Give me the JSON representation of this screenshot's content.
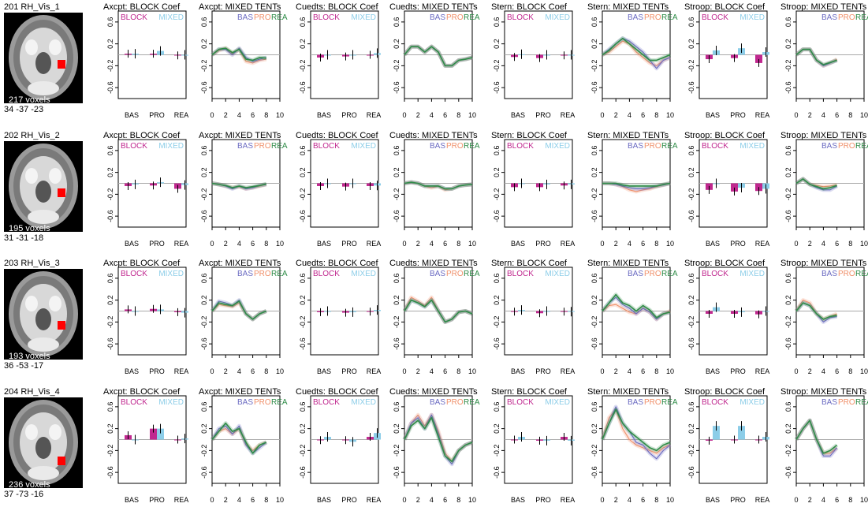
{
  "colors": {
    "block": "#c0288f",
    "mixed": "#8ccde8",
    "bas": "#6b6bc2",
    "pro": "#f0906a",
    "rea": "#2e8b47",
    "zero": "#aaaaaa",
    "brain_roi": "#ff0000"
  },
  "legend": {
    "block_label": "BLOCK",
    "mixed_label": "MIXED",
    "bas_label": "BAS",
    "pro_label": "PRO",
    "rea_label": "REA"
  },
  "axes": {
    "y_ticks": [
      "0.6",
      "0.2",
      "-0.2",
      "-0.6"
    ],
    "y_tick_values": [
      0.6,
      0.2,
      -0.2,
      -0.6
    ],
    "ylim": [
      -0.8,
      0.8
    ],
    "block_categories": [
      "BAS",
      "PRO",
      "REA"
    ],
    "tent_x_ticks": [
      "0",
      "2",
      "4",
      "6",
      "8",
      "10"
    ],
    "tent_xlim": [
      0,
      10
    ]
  },
  "panel_titles": [
    "Axcpt: BLOCK Coef",
    "Axcpt: MIXED TENTs",
    "Cuedts: BLOCK Coef",
    "Cuedts: MIXED TENTs",
    "Stern: BLOCK Coef",
    "Stern: MIXED TENTs",
    "Stroop: BLOCK Coef",
    "Stroop: MIXED TENTs"
  ],
  "rows": [
    {
      "roi": "201 RH_Vis_1",
      "voxels": "217 voxels",
      "coords": "34 -37 -23"
    },
    {
      "roi": "202 RH_Vis_2",
      "voxels": "195 voxels",
      "coords": "31 -31 -18"
    },
    {
      "roi": "203 RH_Vis_3",
      "voxels": "193 voxels",
      "coords": "36 -53 -17"
    },
    {
      "roi": "204 RH_Vis_4",
      "voxels": "236 voxels",
      "coords": "37 -73 -16"
    }
  ],
  "chart_data": [
    {
      "type": "bar",
      "roi": "201 RH_Vis_1",
      "task": "Axcpt",
      "block": [
        0.02,
        0.02,
        -0.01
      ],
      "mixed": [
        0.02,
        0.07,
        0.0
      ]
    },
    {
      "type": "line",
      "roi": "201 RH_Vis_1",
      "task": "Axcpt",
      "x": [
        0,
        1,
        2,
        3,
        4,
        5,
        6,
        7,
        8
      ],
      "BAS": [
        0,
        0.1,
        0.1,
        0.0,
        0.12,
        -0.05,
        -0.12,
        -0.08,
        -0.05
      ],
      "PRO": [
        0,
        0.08,
        0.12,
        0.02,
        0.1,
        -0.12,
        -0.15,
        -0.1,
        -0.08
      ],
      "REA": [
        0,
        0.1,
        0.12,
        0.04,
        0.1,
        -0.08,
        -0.1,
        -0.05,
        -0.06
      ]
    },
    {
      "type": "bar",
      "roi": "201 RH_Vis_1",
      "task": "Cuedts",
      "block": [
        -0.05,
        -0.03,
        0.0
      ],
      "mixed": [
        0.0,
        0.0,
        0.03
      ]
    },
    {
      "type": "line",
      "roi": "201 RH_Vis_1",
      "task": "Cuedts",
      "x": [
        0,
        1,
        2,
        3,
        4,
        5,
        6,
        7,
        8,
        9,
        10
      ],
      "BAS": [
        0,
        0.15,
        0.15,
        0.05,
        0.15,
        0.05,
        -0.2,
        -0.2,
        -0.1,
        -0.08,
        -0.05
      ],
      "PRO": [
        0,
        0.15,
        0.15,
        0.05,
        0.15,
        0.05,
        -0.2,
        -0.2,
        -0.1,
        -0.08,
        -0.05
      ],
      "REA": [
        0,
        0.15,
        0.15,
        0.05,
        0.15,
        0.05,
        -0.2,
        -0.2,
        -0.1,
        -0.08,
        -0.05
      ]
    },
    {
      "type": "bar",
      "roi": "201 RH_Vis_1",
      "task": "Stern",
      "block": [
        -0.04,
        -0.06,
        -0.01
      ],
      "mixed": [
        0.01,
        0.0,
        0.0
      ]
    },
    {
      "type": "line",
      "roi": "201 RH_Vis_1",
      "task": "Stern",
      "x": [
        0,
        1,
        2,
        3,
        4,
        5,
        6,
        7,
        8,
        9,
        10
      ],
      "BAS": [
        0,
        0.1,
        0.2,
        0.3,
        0.25,
        0.15,
        0.05,
        -0.1,
        -0.25,
        -0.1,
        -0.05
      ],
      "PRO": [
        0,
        0.05,
        0.15,
        0.25,
        0.2,
        0.05,
        -0.05,
        -0.15,
        -0.2,
        -0.1,
        -0.05
      ],
      "REA": [
        0,
        0.08,
        0.2,
        0.3,
        0.2,
        0.1,
        0.0,
        -0.1,
        -0.1,
        -0.05,
        0.0
      ]
    },
    {
      "type": "bar",
      "roi": "201 RH_Vis_1",
      "task": "Stroop",
      "block": [
        -0.08,
        -0.06,
        -0.15
      ],
      "mixed": [
        0.08,
        0.12,
        0.05
      ]
    },
    {
      "type": "line",
      "roi": "201 RH_Vis_1",
      "task": "Stroop",
      "x": [
        0,
        1,
        2,
        3,
        4,
        5,
        6
      ],
      "BAS": [
        0,
        0.1,
        0.1,
        -0.1,
        -0.2,
        -0.15,
        -0.1
      ],
      "PRO": [
        0,
        0.1,
        0.1,
        -0.1,
        -0.2,
        -0.15,
        -0.08
      ],
      "REA": [
        0,
        0.1,
        0.1,
        -0.1,
        -0.18,
        -0.14,
        -0.1
      ]
    },
    {
      "type": "bar",
      "roi": "202 RH_Vis_2",
      "task": "Axcpt",
      "block": [
        -0.05,
        -0.04,
        -0.1
      ],
      "mixed": [
        -0.02,
        0.02,
        -0.03
      ]
    },
    {
      "type": "line",
      "roi": "202 RH_Vis_2",
      "task": "Axcpt",
      "x": [
        0,
        1,
        2,
        3,
        4,
        5,
        6,
        7,
        8
      ],
      "BAS": [
        0,
        -0.02,
        -0.05,
        -0.1,
        -0.05,
        -0.1,
        -0.08,
        -0.04,
        -0.02
      ],
      "PRO": [
        0,
        -0.02,
        -0.05,
        -0.08,
        -0.06,
        -0.1,
        -0.08,
        -0.05,
        -0.02
      ],
      "REA": [
        0,
        -0.02,
        -0.04,
        -0.08,
        -0.05,
        -0.08,
        -0.06,
        -0.04,
        -0.01
      ]
    },
    {
      "type": "bar",
      "roi": "202 RH_Vis_2",
      "task": "Cuedts",
      "block": [
        -0.05,
        -0.06,
        -0.05
      ],
      "mixed": [
        0.0,
        0.0,
        -0.04
      ]
    },
    {
      "type": "line",
      "roi": "202 RH_Vis_2",
      "task": "Cuedts",
      "x": [
        0,
        1,
        2,
        3,
        4,
        5,
        6,
        7,
        8,
        9,
        10
      ],
      "BAS": [
        0,
        0.02,
        0.0,
        -0.05,
        -0.05,
        -0.05,
        -0.1,
        -0.1,
        -0.05,
        -0.03,
        -0.02
      ],
      "PRO": [
        0,
        0.02,
        0.0,
        -0.05,
        -0.08,
        -0.05,
        -0.12,
        -0.1,
        -0.05,
        -0.03,
        -0.02
      ],
      "REA": [
        0,
        0.02,
        0.0,
        -0.05,
        -0.05,
        -0.05,
        -0.1,
        -0.1,
        -0.05,
        -0.03,
        -0.02
      ]
    },
    {
      "type": "bar",
      "roi": "202 RH_Vis_2",
      "task": "Stern",
      "block": [
        -0.07,
        -0.07,
        -0.04
      ],
      "mixed": [
        0.0,
        -0.02,
        -0.02
      ]
    },
    {
      "type": "line",
      "roi": "202 RH_Vis_2",
      "task": "Stern",
      "x": [
        0,
        1,
        2,
        3,
        4,
        5,
        6,
        7,
        8,
        9,
        10
      ],
      "BAS": [
        0,
        0.0,
        -0.02,
        -0.05,
        -0.08,
        -0.1,
        -0.1,
        -0.08,
        -0.05,
        -0.03,
        0.0
      ],
      "PRO": [
        0,
        0.0,
        -0.02,
        -0.06,
        -0.12,
        -0.15,
        -0.12,
        -0.1,
        -0.06,
        -0.03,
        0.0
      ],
      "REA": [
        0,
        0.0,
        0.0,
        -0.03,
        -0.05,
        -0.05,
        -0.05,
        -0.05,
        -0.05,
        -0.02,
        0.0
      ]
    },
    {
      "type": "bar",
      "roi": "202 RH_Vis_2",
      "task": "Stroop",
      "block": [
        -0.12,
        -0.15,
        -0.14
      ],
      "mixed": [
        0.0,
        -0.08,
        -0.1
      ]
    },
    {
      "type": "line",
      "roi": "202 RH_Vis_2",
      "task": "Stroop",
      "x": [
        0,
        1,
        2,
        3,
        4,
        5,
        6
      ],
      "BAS": [
        0,
        0.08,
        -0.02,
        -0.08,
        -0.12,
        -0.12,
        -0.05
      ],
      "PRO": [
        0,
        0.08,
        -0.02,
        -0.04,
        -0.06,
        -0.05,
        -0.03
      ],
      "REA": [
        0,
        0.08,
        -0.02,
        -0.06,
        -0.1,
        -0.08,
        -0.04
      ]
    },
    {
      "type": "bar",
      "roi": "203 RH_Vis_3",
      "task": "Axcpt",
      "block": [
        0.03,
        0.04,
        -0.02
      ],
      "mixed": [
        0.0,
        0.03,
        -0.03
      ]
    },
    {
      "type": "line",
      "roi": "203 RH_Vis_3",
      "task": "Axcpt",
      "x": [
        0,
        1,
        2,
        3,
        4,
        5,
        6,
        7,
        8
      ],
      "BAS": [
        0,
        0.18,
        0.15,
        0.1,
        0.2,
        -0.05,
        -0.15,
        -0.05,
        0.0
      ],
      "PRO": [
        0,
        0.12,
        0.1,
        0.08,
        0.15,
        -0.05,
        -0.15,
        -0.05,
        0.0
      ],
      "REA": [
        0,
        0.15,
        0.12,
        0.1,
        0.18,
        -0.05,
        -0.15,
        -0.05,
        0.0
      ]
    },
    {
      "type": "bar",
      "roi": "203 RH_Vis_3",
      "task": "Cuedts",
      "block": [
        -0.02,
        -0.03,
        -0.01
      ],
      "mixed": [
        0.0,
        -0.02,
        0.02
      ]
    },
    {
      "type": "line",
      "roi": "203 RH_Vis_3",
      "task": "Cuedts",
      "x": [
        0,
        1,
        2,
        3,
        4,
        5,
        6,
        7,
        8,
        9,
        10
      ],
      "BAS": [
        0,
        0.2,
        0.15,
        0.08,
        0.2,
        0.0,
        -0.2,
        -0.15,
        -0.02,
        0.0,
        -0.05
      ],
      "PRO": [
        0,
        0.25,
        0.18,
        0.1,
        0.25,
        0.0,
        -0.2,
        -0.15,
        -0.02,
        0.0,
        -0.05
      ],
      "REA": [
        0,
        0.2,
        0.15,
        0.08,
        0.2,
        0.0,
        -0.2,
        -0.15,
        -0.02,
        0.0,
        -0.05
      ]
    },
    {
      "type": "bar",
      "roi": "203 RH_Vis_3",
      "task": "Stern",
      "block": [
        -0.01,
        -0.04,
        -0.01
      ],
      "mixed": [
        0.02,
        0.0,
        -0.01
      ]
    },
    {
      "type": "line",
      "roi": "203 RH_Vis_3",
      "task": "Stern",
      "x": [
        0,
        1,
        2,
        3,
        4,
        5,
        6,
        7,
        8,
        9,
        10
      ],
      "BAS": [
        0,
        0.15,
        0.25,
        0.12,
        0.05,
        -0.05,
        0.05,
        -0.02,
        -0.15,
        -0.05,
        -0.02
      ],
      "PRO": [
        0,
        0.1,
        0.12,
        0.05,
        -0.02,
        -0.05,
        0.05,
        -0.02,
        -0.15,
        -0.05,
        0.0
      ],
      "REA": [
        0,
        0.15,
        0.3,
        0.15,
        0.1,
        0.0,
        0.1,
        0.02,
        -0.12,
        -0.05,
        -0.02
      ]
    },
    {
      "type": "bar",
      "roi": "203 RH_Vis_3",
      "task": "Stroop",
      "block": [
        -0.05,
        -0.05,
        -0.06
      ],
      "mixed": [
        0.07,
        -0.02,
        0.0
      ]
    },
    {
      "type": "line",
      "roi": "203 RH_Vis_3",
      "task": "Stroop",
      "x": [
        0,
        1,
        2,
        3,
        4,
        5,
        6
      ],
      "BAS": [
        0,
        0.15,
        0.1,
        -0.05,
        -0.2,
        -0.12,
        -0.1
      ],
      "PRO": [
        0,
        0.2,
        0.15,
        -0.05,
        -0.15,
        -0.1,
        -0.05
      ],
      "REA": [
        0,
        0.15,
        0.1,
        -0.05,
        -0.15,
        -0.1,
        -0.08
      ]
    },
    {
      "type": "bar",
      "roi": "204 RH_Vis_4",
      "task": "Axcpt",
      "block": [
        0.08,
        0.2,
        0.0
      ],
      "mixed": [
        0.0,
        0.2,
        0.02
      ]
    },
    {
      "type": "line",
      "roi": "204 RH_Vis_4",
      "task": "Axcpt",
      "x": [
        0,
        1,
        2,
        3,
        4,
        5,
        6,
        7,
        8
      ],
      "BAS": [
        0,
        0.2,
        0.25,
        0.1,
        0.25,
        -0.1,
        -0.25,
        -0.15,
        -0.05
      ],
      "PRO": [
        0,
        0.15,
        0.2,
        0.1,
        0.2,
        -0.08,
        -0.2,
        -0.1,
        -0.05
      ],
      "REA": [
        0,
        0.15,
        0.3,
        0.15,
        0.2,
        -0.05,
        -0.25,
        -0.1,
        -0.05
      ]
    },
    {
      "type": "bar",
      "roi": "204 RH_Vis_4",
      "task": "Cuedts",
      "block": [
        -0.01,
        -0.01,
        0.05
      ],
      "mixed": [
        0.05,
        -0.04,
        0.12
      ]
    },
    {
      "type": "line",
      "roi": "204 RH_Vis_4",
      "task": "Cuedts",
      "x": [
        0,
        1,
        2,
        3,
        4,
        5,
        6,
        7,
        8,
        9,
        10
      ],
      "BAS": [
        0,
        0.3,
        0.4,
        0.2,
        0.45,
        0.1,
        -0.3,
        -0.45,
        -0.2,
        -0.1,
        -0.05
      ],
      "PRO": [
        0,
        0.3,
        0.45,
        0.25,
        0.45,
        0.15,
        -0.25,
        -0.4,
        -0.2,
        -0.1,
        -0.05
      ],
      "REA": [
        0,
        0.25,
        0.35,
        0.2,
        0.4,
        0.05,
        -0.3,
        -0.4,
        -0.2,
        -0.1,
        -0.05
      ]
    },
    {
      "type": "bar",
      "roi": "204 RH_Vis_4",
      "task": "Stern",
      "block": [
        0.0,
        -0.02,
        0.05
      ],
      "mixed": [
        0.05,
        -0.02,
        -0.02
      ]
    },
    {
      "type": "line",
      "roi": "204 RH_Vis_4",
      "task": "Stern",
      "x": [
        0,
        1,
        2,
        3,
        4,
        5,
        6,
        7,
        8,
        9,
        10
      ],
      "BAS": [
        0,
        0.3,
        0.6,
        0.3,
        0.15,
        -0.05,
        -0.1,
        -0.25,
        -0.35,
        -0.2,
        -0.1
      ],
      "PRO": [
        0,
        0.4,
        0.55,
        0.2,
        0.0,
        -0.1,
        -0.15,
        -0.2,
        -0.25,
        -0.15,
        -0.1
      ],
      "REA": [
        0,
        0.3,
        0.55,
        0.3,
        0.15,
        0.05,
        -0.05,
        -0.15,
        -0.2,
        -0.1,
        -0.05
      ]
    },
    {
      "type": "bar",
      "roi": "204 RH_Vis_4",
      "task": "Stroop",
      "block": [
        -0.02,
        0.0,
        0.0
      ],
      "mixed": [
        0.25,
        0.25,
        0.05
      ]
    },
    {
      "type": "line",
      "roi": "204 RH_Vis_4",
      "task": "Stroop",
      "x": [
        0,
        1,
        2,
        3,
        4,
        5,
        6
      ],
      "BAS": [
        0,
        0.2,
        0.35,
        0.0,
        -0.3,
        -0.3,
        -0.15
      ],
      "PRO": [
        0,
        0.2,
        0.35,
        0.0,
        -0.25,
        -0.25,
        -0.15
      ],
      "REA": [
        0,
        0.2,
        0.35,
        0.0,
        -0.25,
        -0.2,
        -0.1
      ]
    }
  ]
}
